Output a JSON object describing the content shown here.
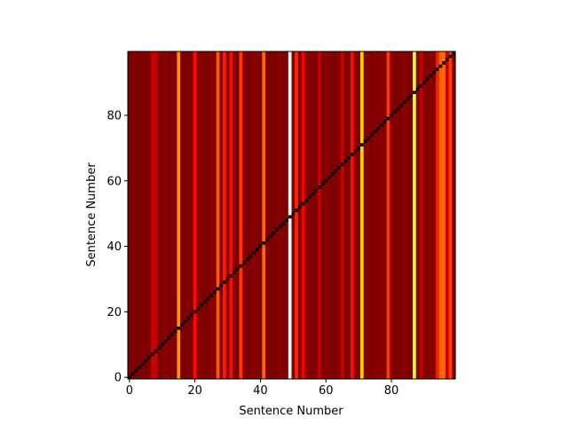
{
  "chart_data": {
    "type": "heatmap",
    "title": "",
    "xlabel": "Sentence Number",
    "ylabel": "Sentence Number",
    "xlim": [
      -0.5,
      99.5
    ],
    "ylim": [
      -0.5,
      99.5
    ],
    "x_ticks": [
      0,
      20,
      40,
      60,
      80
    ],
    "y_ticks": [
      0,
      20,
      40,
      60,
      80
    ],
    "x_tick_labels": [
      "0",
      "20",
      "40",
      "60",
      "80"
    ],
    "y_tick_labels": [
      "0",
      "20",
      "40",
      "60",
      "80"
    ],
    "n": 100,
    "colormap": "hot",
    "grid": false,
    "legend": "none",
    "diagonal_value": 0.0,
    "column_values": [
      0.18,
      0.18,
      0.18,
      0.18,
      0.18,
      0.18,
      0.18,
      0.28,
      0.28,
      0.18,
      0.18,
      0.2,
      0.18,
      0.18,
      0.18,
      0.58,
      0.18,
      0.18,
      0.18,
      0.18,
      0.38,
      0.2,
      0.18,
      0.18,
      0.18,
      0.2,
      0.18,
      0.5,
      0.2,
      0.4,
      0.18,
      0.38,
      0.2,
      0.18,
      0.45,
      0.2,
      0.18,
      0.18,
      0.2,
      0.18,
      0.18,
      0.52,
      0.18,
      0.18,
      0.18,
      0.18,
      0.2,
      0.18,
      0.18,
      1.0,
      0.18,
      0.42,
      0.18,
      0.35,
      0.2,
      0.18,
      0.18,
      0.18,
      0.28,
      0.18,
      0.2,
      0.18,
      0.18,
      0.18,
      0.2,
      0.28,
      0.18,
      0.18,
      0.38,
      0.2,
      0.18,
      0.68,
      0.2,
      0.18,
      0.18,
      0.2,
      0.18,
      0.2,
      0.18,
      0.45,
      0.2,
      0.18,
      0.18,
      0.18,
      0.2,
      0.18,
      0.18,
      0.78,
      0.18,
      0.28,
      0.2,
      0.18,
      0.2,
      0.18,
      0.4,
      0.52,
      0.52,
      0.28,
      0.45,
      0.18
    ]
  }
}
